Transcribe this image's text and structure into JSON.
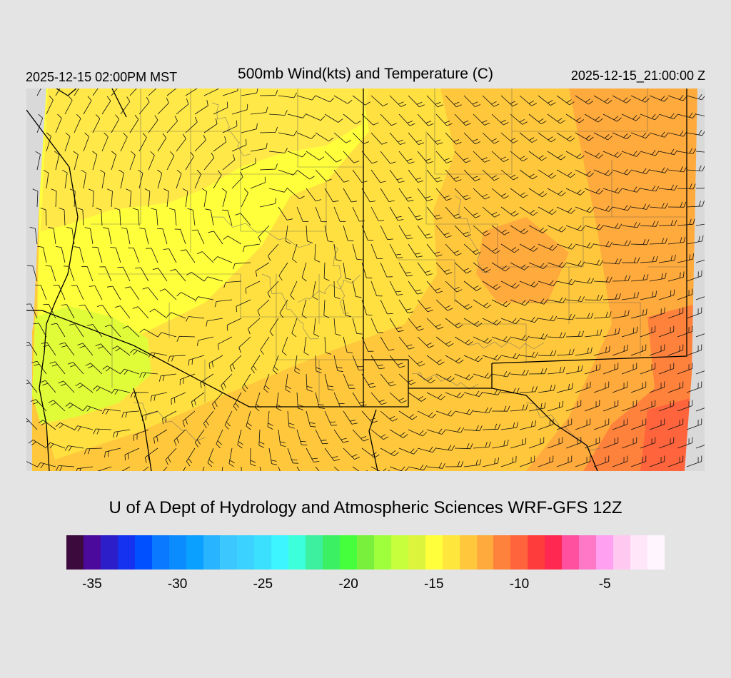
{
  "header": {
    "local_time": "2025-12-15 02:00PM MST",
    "title": "500mb Wind(kts) and Temperature (C)",
    "valid_time": "2025-12-15_21:00:00 Z"
  },
  "credit": "U of A Dept of Hydrology and Atmospheric Sciences WRF-GFS 12Z",
  "legend": {
    "ticks": [
      "-35",
      "-30",
      "-25",
      "-20",
      "-15",
      "-10",
      "-5"
    ],
    "tick_values": [
      -35,
      -30,
      -25,
      -20,
      -15,
      -10,
      -5
    ],
    "range_min": -36.5,
    "range_max": -1.5,
    "colors": [
      "#3c0a3c",
      "#4b0a9b",
      "#2c1ec8",
      "#1432f0",
      "#0050ff",
      "#0a78ff",
      "#0a8cff",
      "#0aa0ff",
      "#28b4ff",
      "#3cc8ff",
      "#3cd2ff",
      "#3ce0ff",
      "#3cf5ff",
      "#3cffdc",
      "#3cf0a0",
      "#3cf064",
      "#46ff3c",
      "#78f03c",
      "#a0ff3c",
      "#c8ff3c",
      "#dcf53c",
      "#ffff3c",
      "#ffe63c",
      "#ffc83c",
      "#ffaa3c",
      "#ff823c",
      "#ff643c",
      "#ff3c3c",
      "#ff2850",
      "#ff50a0",
      "#ff78c8",
      "#ffa0f0",
      "#ffc8f0",
      "#ffe6f8",
      "#fff5ff"
    ]
  },
  "map": {
    "field": "500mb temperature",
    "temperature_range_shown": [
      -17,
      -11
    ],
    "colors": {
      "cold_zone": "#e0fc38",
      "mid_zone": "#ffff3c",
      "warm_zone": "#ffe040",
      "warmer_zone": "#ffc83c",
      "warmest_zone": "#ffaa3c",
      "hot_zone": "#ff823c",
      "hottest_zone": "#ff643c",
      "outside": "#d9d9d9"
    }
  }
}
